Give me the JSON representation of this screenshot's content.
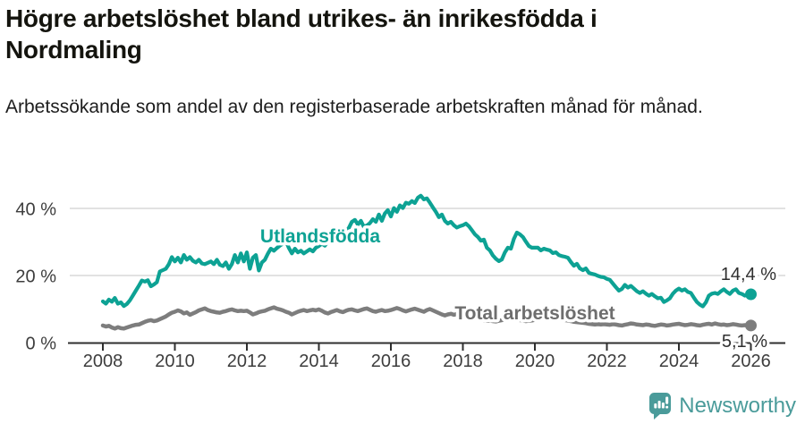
{
  "header": {
    "title": "Högre arbetslöshet bland utrikes- än inrikesfödda i Nordmaling",
    "subtitle": "Arbetssökande som andel av den registerbaserade arbetskraften månad för månad."
  },
  "footer": {
    "brand": "Newsworthy",
    "logo_icon": "bar-chart-speech-bubble-icon"
  },
  "colors": {
    "accent_teal": "#0da294",
    "line_gray": "#7d7d7d",
    "total_label_gray": "#6e6e6e",
    "axis": "#2f2f2f",
    "grid": "#d8d8d8",
    "tick_text": "#3d3d3d",
    "end_label_text": "#2f2f2f",
    "logo_teal": "#4a9b9a"
  },
  "chart_data": {
    "type": "line",
    "title": "Högre arbetslöshet bland utrikes- än inrikesfödda i Nordmaling",
    "subtitle": "Arbetssökande som andel av den registerbaserade arbetskraften månad för månad.",
    "x_unit": "monthly, decimal years",
    "x_range": [
      2008,
      2026.08
    ],
    "y_range": [
      0,
      45
    ],
    "grid": "horizontal",
    "legend_position": "inline-labels",
    "x_ticks": [
      2008,
      2010,
      2012,
      2014,
      2016,
      2018,
      2020,
      2022,
      2024,
      2026
    ],
    "y_ticks": [
      {
        "value": 0,
        "label": "0 %"
      },
      {
        "value": 20,
        "label": "20 %"
      },
      {
        "value": 40,
        "label": "40 %"
      }
    ],
    "series": [
      {
        "name": "Utlandsfödda",
        "color": "#0da294",
        "stroke_width": 4.2,
        "start_year": 2008,
        "points_per_year": 12,
        "end_value": 14.4,
        "end_label": "14,4 %",
        "values": [
          12.3,
          11.6,
          12.8,
          12.2,
          13.3,
          11.6,
          12.0,
          10.9,
          11.5,
          12.6,
          14.0,
          15.5,
          17.0,
          18.5,
          18.2,
          18.6,
          16.8,
          17.3,
          18.0,
          21.2,
          21.6,
          22.0,
          23.4,
          25.5,
          24.2,
          25.3,
          23.9,
          26.1,
          24.7,
          25.5,
          24.4,
          23.9,
          24.7,
          23.6,
          23.4,
          23.8,
          24.2,
          23.4,
          24.7,
          23.2,
          22.8,
          23.9,
          22.0,
          23.4,
          26.1,
          23.9,
          26.6,
          24.2,
          26.9,
          22.0,
          25.3,
          26.1,
          21.5,
          23.9,
          24.7,
          26.5,
          28.0,
          27.4,
          28.2,
          28.9,
          29.5,
          30.3,
          28.2,
          26.6,
          28.0,
          26.9,
          27.4,
          26.6,
          27.2,
          27.8,
          27.2,
          28.3,
          28.8,
          29.5,
          28.9,
          30.2,
          30.8,
          30.2,
          31.5,
          32.2,
          31.6,
          33.0,
          34.2,
          36.0,
          36.6,
          35.2,
          36.3,
          34.5,
          34.9,
          35.6,
          36.8,
          36.0,
          38.2,
          36.3,
          38.5,
          39.5,
          37.6,
          40.1,
          39.0,
          40.9,
          40.1,
          41.7,
          41.4,
          42.2,
          41.6,
          43.2,
          43.8,
          42.7,
          43.0,
          41.7,
          40.3,
          39.0,
          37.4,
          38.2,
          36.3,
          35.5,
          36.0,
          35.0,
          34.3,
          34.7,
          35.0,
          35.5,
          34.7,
          33.5,
          32.3,
          31.5,
          30.4,
          30.7,
          28.3,
          27.5,
          26.0,
          25.0,
          24.3,
          24.8,
          26.9,
          28.3,
          28.0,
          30.9,
          32.8,
          32.3,
          31.5,
          30.1,
          28.8,
          28.3,
          28.3,
          28.3,
          27.5,
          28.0,
          27.7,
          27.5,
          26.7,
          26.9,
          26.1,
          25.8,
          25.6,
          25.3,
          24.0,
          22.9,
          23.5,
          22.1,
          21.6,
          22.1,
          20.8,
          20.5,
          20.3,
          19.9,
          19.6,
          19.5,
          19.0,
          18.7,
          17.6,
          16.5,
          15.5,
          16.0,
          17.2,
          16.4,
          16.9,
          16.1,
          15.3,
          14.8,
          15.3,
          14.6,
          14.0,
          14.5,
          13.8,
          13.2,
          13.4,
          12.1,
          12.6,
          13.2,
          14.6,
          15.5,
          16.1,
          15.5,
          15.9,
          15.1,
          14.8,
          13.4,
          12.1,
          11.3,
          10.8,
          12.0,
          14.0,
          14.6,
          14.8,
          14.5,
          15.3,
          15.9,
          15.1,
          14.5,
          15.5,
          15.9,
          14.8,
          14.5,
          14.0,
          14.2,
          14.4
        ]
      },
      {
        "name": "Total arbetslöshet",
        "color": "#7d7d7d",
        "label_color": "#6e6e6e",
        "stroke_width": 4.5,
        "start_year": 2008,
        "points_per_year": 12,
        "end_value": 5.1,
        "end_label": "5,1 %",
        "values": [
          5.1,
          4.8,
          5.0,
          4.5,
          4.2,
          4.6,
          4.3,
          4.2,
          4.5,
          4.8,
          5.1,
          5.3,
          5.4,
          5.8,
          6.2,
          6.5,
          6.7,
          6.4,
          6.6,
          7.0,
          7.4,
          7.8,
          8.4,
          8.9,
          9.2,
          9.6,
          9.3,
          8.7,
          9.0,
          8.3,
          8.7,
          9.1,
          9.6,
          9.9,
          10.2,
          9.7,
          9.4,
          9.2,
          9.0,
          8.9,
          9.2,
          9.4,
          9.7,
          9.9,
          9.6,
          9.4,
          9.5,
          9.4,
          9.5,
          9.0,
          8.4,
          8.7,
          9.1,
          9.3,
          9.5,
          9.9,
          10.2,
          10.5,
          10.1,
          9.9,
          9.6,
          9.2,
          8.9,
          8.4,
          8.8,
          9.2,
          9.5,
          9.7,
          9.4,
          9.6,
          9.8,
          9.6,
          9.9,
          9.5,
          9.0,
          8.7,
          9.1,
          9.4,
          9.7,
          9.3,
          9.1,
          9.5,
          9.8,
          9.9,
          9.6,
          9.4,
          9.7,
          10.0,
          10.2,
          9.8,
          9.4,
          9.2,
          9.5,
          9.7,
          9.4,
          9.5,
          9.7,
          10.0,
          10.3,
          10.0,
          9.6,
          9.3,
          9.6,
          9.9,
          10.1,
          9.8,
          9.5,
          9.2,
          9.7,
          10.0,
          9.6,
          9.2,
          8.8,
          8.4,
          8.1,
          8.4,
          8.6,
          8.3,
          8.5,
          8.2,
          8.4,
          8.1,
          7.8,
          7.5,
          7.3,
          7.1,
          6.9,
          6.7,
          6.5,
          6.6,
          6.4,
          6.3,
          6.5,
          6.7,
          6.9,
          7.1,
          7.0,
          6.8,
          6.9,
          6.7,
          6.6,
          6.4,
          6.5,
          6.6,
          6.8,
          6.7,
          7.2,
          7.6,
          7.8,
          7.7,
          7.5,
          7.3,
          7.1,
          6.9,
          6.7,
          6.6,
          6.4,
          6.2,
          6.1,
          6.0,
          5.9,
          5.8,
          5.6,
          5.5,
          5.4,
          5.5,
          5.4,
          5.5,
          5.4,
          5.3,
          5.5,
          5.4,
          5.2,
          5.1,
          5.3,
          5.5,
          5.7,
          5.6,
          5.4,
          5.3,
          5.2,
          5.4,
          5.3,
          5.1,
          5.0,
          5.2,
          5.4,
          5.3,
          5.1,
          5.2,
          5.4,
          5.5,
          5.6,
          5.4,
          5.2,
          5.3,
          5.5,
          5.4,
          5.2,
          5.1,
          5.3,
          5.5,
          5.6,
          5.4,
          5.7,
          5.5,
          5.3,
          5.4,
          5.2,
          5.3,
          5.5,
          5.4,
          5.2,
          5.1,
          5.2,
          5.1,
          5.1
        ]
      }
    ]
  }
}
